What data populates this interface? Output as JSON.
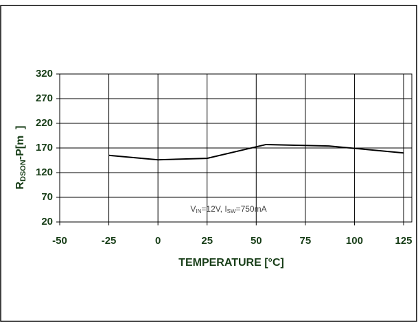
{
  "chart_data": {
    "type": "line",
    "xlabel": "TEMPERATURE [°C]",
    "ylabel": {
      "main": "R",
      "sub": "DSON",
      "rest": "-P[m  ]"
    },
    "annotation": {
      "v": "V",
      "vsub": "IN",
      "vrest": "=12V, I",
      "isub": "SW",
      "irest": "=750mA"
    },
    "x": [
      -25,
      0,
      25,
      55,
      87,
      125
    ],
    "series": [
      {
        "color": "#000000",
        "values": [
          155,
          146,
          149,
          177,
          174,
          160
        ]
      }
    ],
    "xlim": [
      -50,
      125
    ],
    "xticks": [
      -50,
      -25,
      0,
      25,
      50,
      75,
      100,
      125
    ],
    "ylim": [
      20,
      320
    ],
    "yticks": [
      20,
      70,
      120,
      170,
      220,
      270,
      320
    ],
    "grid": true
  }
}
